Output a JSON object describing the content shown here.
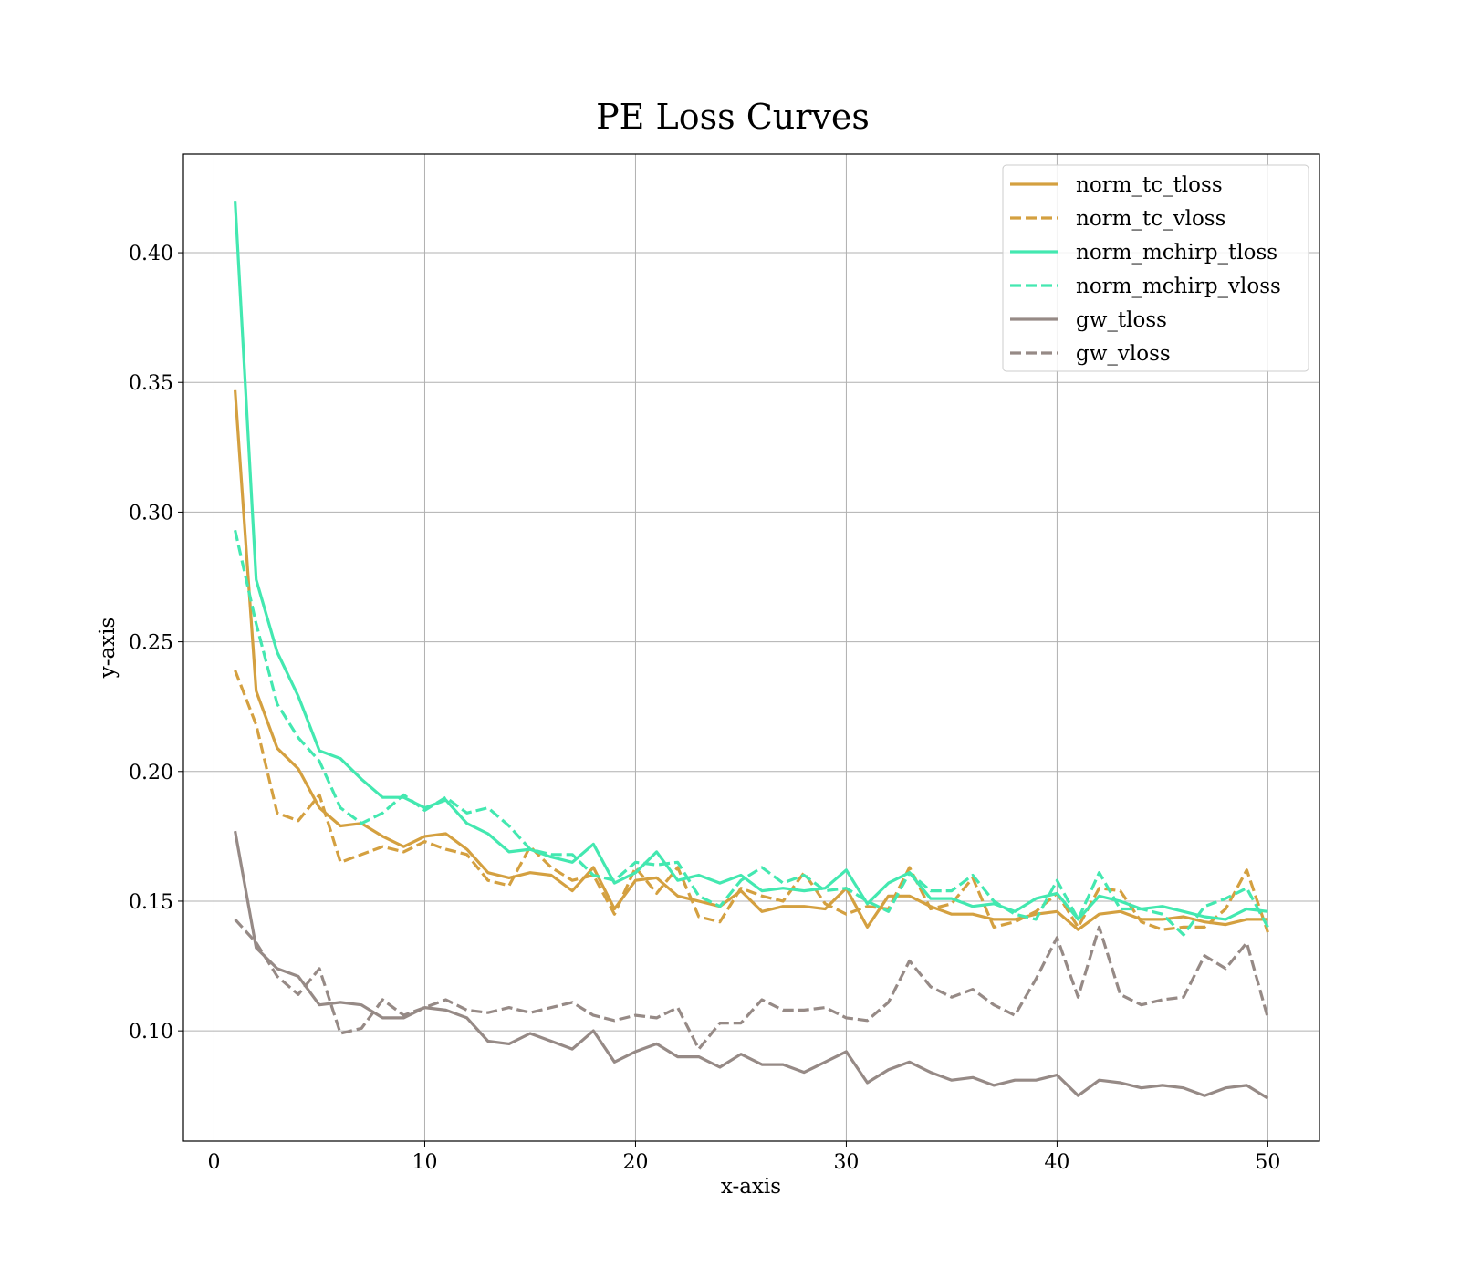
{
  "chart_data": {
    "type": "line",
    "title": "PE Loss Curves",
    "xlabel": "x-axis",
    "ylabel": "y-axis",
    "xlim": [
      -1.45,
      52.45
    ],
    "ylim": [
      0.0575,
      0.438
    ],
    "xticks": [
      0,
      10,
      20,
      30,
      40,
      50
    ],
    "xtick_labels": [
      "0",
      "10",
      "20",
      "30",
      "40",
      "50"
    ],
    "yticks": [
      0.1,
      0.15,
      0.2,
      0.25,
      0.3,
      0.35,
      0.4
    ],
    "ytick_labels": [
      "0.10",
      "0.15",
      "0.20",
      "0.25",
      "0.30",
      "0.35",
      "0.40"
    ],
    "grid": true,
    "legend_position": "top-right",
    "x": [
      1,
      2,
      3,
      4,
      5,
      6,
      7,
      8,
      9,
      10,
      11,
      12,
      13,
      14,
      15,
      16,
      17,
      18,
      19,
      20,
      21,
      22,
      23,
      24,
      25,
      26,
      27,
      28,
      29,
      30,
      31,
      32,
      33,
      34,
      35,
      36,
      37,
      38,
      39,
      40,
      41,
      42,
      43,
      44,
      45,
      46,
      47,
      48,
      49,
      50
    ],
    "series": [
      {
        "name": "norm_tc_tloss",
        "color": "#d4a040",
        "dash": "solid",
        "values": [
          0.347,
          0.231,
          0.209,
          0.201,
          0.186,
          0.179,
          0.18,
          0.175,
          0.171,
          0.175,
          0.176,
          0.17,
          0.161,
          0.159,
          0.161,
          0.16,
          0.154,
          0.163,
          0.147,
          0.158,
          0.159,
          0.152,
          0.15,
          0.148,
          0.154,
          0.146,
          0.148,
          0.148,
          0.147,
          0.155,
          0.14,
          0.152,
          0.152,
          0.148,
          0.145,
          0.145,
          0.143,
          0.143,
          0.145,
          0.146,
          0.139,
          0.145,
          0.146,
          0.143,
          0.143,
          0.144,
          0.142,
          0.141,
          0.143,
          0.143
        ]
      },
      {
        "name": "norm_tc_vloss",
        "color": "#d4a040",
        "dash": "dashed",
        "values": [
          0.239,
          0.218,
          0.184,
          0.181,
          0.191,
          0.165,
          0.168,
          0.171,
          0.169,
          0.173,
          0.17,
          0.168,
          0.158,
          0.156,
          0.171,
          0.163,
          0.158,
          0.16,
          0.145,
          0.163,
          0.153,
          0.163,
          0.144,
          0.142,
          0.155,
          0.152,
          0.15,
          0.161,
          0.149,
          0.145,
          0.148,
          0.147,
          0.163,
          0.147,
          0.149,
          0.159,
          0.14,
          0.142,
          0.146,
          0.153,
          0.14,
          0.155,
          0.154,
          0.142,
          0.139,
          0.14,
          0.14,
          0.147,
          0.162,
          0.138
        ]
      },
      {
        "name": "norm_mchirp_tloss",
        "color": "#43e8b0",
        "dash": "solid",
        "values": [
          0.42,
          0.274,
          0.246,
          0.229,
          0.208,
          0.205,
          0.197,
          0.19,
          0.19,
          0.186,
          0.189,
          0.18,
          0.176,
          0.169,
          0.17,
          0.167,
          0.165,
          0.172,
          0.157,
          0.161,
          0.169,
          0.158,
          0.16,
          0.157,
          0.16,
          0.154,
          0.155,
          0.154,
          0.155,
          0.162,
          0.149,
          0.157,
          0.161,
          0.151,
          0.151,
          0.148,
          0.149,
          0.146,
          0.151,
          0.153,
          0.143,
          0.152,
          0.15,
          0.147,
          0.148,
          0.146,
          0.144,
          0.143,
          0.147,
          0.146
        ]
      },
      {
        "name": "norm_mchirp_vloss",
        "color": "#43e8b0",
        "dash": "dashed",
        "values": [
          0.293,
          0.257,
          0.226,
          0.213,
          0.204,
          0.186,
          0.18,
          0.184,
          0.191,
          0.185,
          0.19,
          0.184,
          0.186,
          0.179,
          0.17,
          0.168,
          0.168,
          0.16,
          0.158,
          0.165,
          0.164,
          0.165,
          0.152,
          0.148,
          0.158,
          0.163,
          0.157,
          0.16,
          0.154,
          0.155,
          0.15,
          0.146,
          0.161,
          0.154,
          0.154,
          0.16,
          0.15,
          0.145,
          0.143,
          0.158,
          0.143,
          0.161,
          0.147,
          0.147,
          0.145,
          0.137,
          0.148,
          0.151,
          0.155,
          0.14
        ]
      },
      {
        "name": "gw_tloss",
        "color": "#968a86",
        "dash": "solid",
        "values": [
          0.177,
          0.132,
          0.124,
          0.121,
          0.11,
          0.111,
          0.11,
          0.105,
          0.105,
          0.109,
          0.108,
          0.105,
          0.096,
          0.095,
          0.099,
          0.096,
          0.093,
          0.1,
          0.088,
          0.092,
          0.095,
          0.09,
          0.09,
          0.086,
          0.091,
          0.087,
          0.087,
          0.084,
          0.088,
          0.092,
          0.08,
          0.085,
          0.088,
          0.084,
          0.081,
          0.082,
          0.079,
          0.081,
          0.081,
          0.083,
          0.075,
          0.081,
          0.08,
          0.078,
          0.079,
          0.078,
          0.075,
          0.078,
          0.079,
          0.074
        ]
      },
      {
        "name": "gw_vloss",
        "color": "#968a86",
        "dash": "dashed",
        "values": [
          0.143,
          0.134,
          0.121,
          0.114,
          0.124,
          0.099,
          0.101,
          0.112,
          0.106,
          0.109,
          0.112,
          0.108,
          0.107,
          0.109,
          0.107,
          0.109,
          0.111,
          0.106,
          0.104,
          0.106,
          0.105,
          0.109,
          0.093,
          0.103,
          0.103,
          0.112,
          0.108,
          0.108,
          0.109,
          0.105,
          0.104,
          0.111,
          0.127,
          0.117,
          0.113,
          0.116,
          0.11,
          0.106,
          0.12,
          0.136,
          0.113,
          0.14,
          0.114,
          0.11,
          0.112,
          0.113,
          0.129,
          0.124,
          0.134,
          0.105
        ]
      }
    ]
  }
}
